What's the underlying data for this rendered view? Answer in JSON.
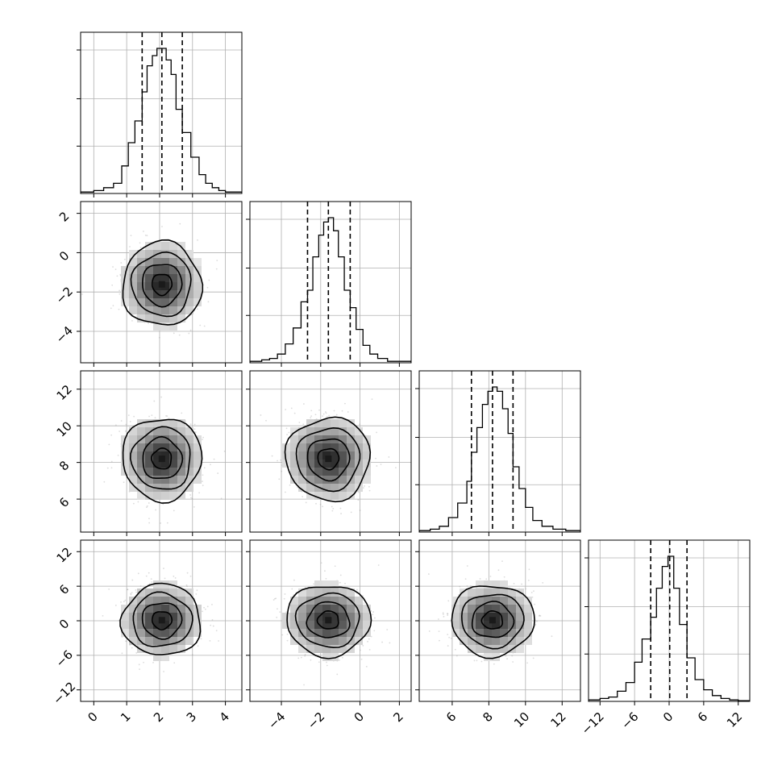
{
  "chart_data": {
    "type": "corner",
    "n_params": 4,
    "param_labels": [
      "",
      "",
      "",
      ""
    ],
    "ranges": [
      [
        -0.4,
        4.5
      ],
      [
        -5.6,
        2.6
      ],
      [
        4.2,
        13.0
      ],
      [
        -14.0,
        14.0
      ]
    ],
    "ticks": [
      [
        0,
        1,
        2,
        3,
        4
      ],
      [
        -4,
        -2,
        0,
        2
      ],
      [
        6,
        8,
        10,
        12
      ],
      [
        -12,
        -6,
        0,
        6,
        12
      ]
    ],
    "tick_labels": [
      [
        "0",
        "1",
        "2",
        "3",
        "4"
      ],
      [
        "−4",
        "−2",
        "0",
        "2"
      ],
      [
        "6",
        "8",
        "10",
        "12"
      ],
      [
        "−12",
        "−6",
        "0",
        "6",
        "12"
      ]
    ],
    "quantiles": [
      [
        1.47,
        2.07,
        2.69
      ],
      [
        -2.67,
        -1.61,
        -0.5
      ],
      [
        7.05,
        8.2,
        9.32
      ],
      [
        -3.2,
        0.1,
        3.1
      ]
    ],
    "grid": true,
    "diagonal_histograms": [
      {
        "param": 0,
        "bins": [
          [
            -0.4,
            0.0
          ],
          [
            0.0,
            0.3
          ],
          [
            0.3,
            0.6
          ],
          [
            0.6,
            0.85
          ],
          [
            0.85,
            1.05
          ],
          [
            1.05,
            1.25
          ],
          [
            1.25,
            1.47
          ],
          [
            1.47,
            1.62
          ],
          [
            1.62,
            1.78
          ],
          [
            1.78,
            1.92
          ],
          [
            1.92,
            2.07
          ],
          [
            2.07,
            2.2
          ],
          [
            2.2,
            2.35
          ],
          [
            2.35,
            2.5
          ],
          [
            2.5,
            2.69
          ],
          [
            2.69,
            2.95
          ],
          [
            2.95,
            3.2
          ],
          [
            3.2,
            3.4
          ],
          [
            3.4,
            3.6
          ],
          [
            3.6,
            3.8
          ],
          [
            3.8,
            4.0
          ],
          [
            4.0,
            4.5
          ]
        ],
        "counts": [
          0.01,
          0.02,
          0.04,
          0.07,
          0.19,
          0.35,
          0.5,
          0.7,
          0.88,
          0.95,
          1.0,
          1.0,
          0.92,
          0.82,
          0.58,
          0.42,
          0.25,
          0.13,
          0.07,
          0.04,
          0.02,
          0.01
        ]
      },
      {
        "param": 1,
        "bins": [
          [
            -5.6,
            -5.0
          ],
          [
            -5.0,
            -4.6
          ],
          [
            -4.6,
            -4.2
          ],
          [
            -4.2,
            -3.8
          ],
          [
            -3.8,
            -3.4
          ],
          [
            -3.4,
            -3.0
          ],
          [
            -3.0,
            -2.67
          ],
          [
            -2.67,
            -2.4
          ],
          [
            -2.4,
            -2.1
          ],
          [
            -2.1,
            -1.85
          ],
          [
            -1.85,
            -1.61
          ],
          [
            -1.61,
            -1.35
          ],
          [
            -1.35,
            -1.1
          ],
          [
            -1.1,
            -0.8
          ],
          [
            -0.8,
            -0.5
          ],
          [
            -0.5,
            -0.2
          ],
          [
            -0.2,
            0.15
          ],
          [
            0.15,
            0.5
          ],
          [
            0.5,
            0.9
          ],
          [
            0.9,
            1.4
          ],
          [
            1.4,
            2.6
          ]
        ],
        "counts": [
          0.01,
          0.02,
          0.03,
          0.06,
          0.13,
          0.24,
          0.42,
          0.5,
          0.73,
          0.88,
          0.97,
          1.0,
          0.91,
          0.73,
          0.5,
          0.38,
          0.23,
          0.12,
          0.06,
          0.03,
          0.01
        ]
      },
      {
        "param": 2,
        "bins": [
          [
            4.2,
            4.8
          ],
          [
            4.8,
            5.3
          ],
          [
            5.3,
            5.8
          ],
          [
            5.8,
            6.3
          ],
          [
            6.3,
            6.8
          ],
          [
            6.8,
            7.05
          ],
          [
            7.05,
            7.35
          ],
          [
            7.35,
            7.65
          ],
          [
            7.65,
            7.95
          ],
          [
            7.95,
            8.2
          ],
          [
            8.2,
            8.45
          ],
          [
            8.45,
            8.75
          ],
          [
            8.75,
            9.05
          ],
          [
            9.05,
            9.32
          ],
          [
            9.32,
            9.65
          ],
          [
            9.65,
            10.0
          ],
          [
            10.0,
            10.4
          ],
          [
            10.4,
            10.9
          ],
          [
            10.9,
            11.5
          ],
          [
            11.5,
            12.2
          ],
          [
            12.2,
            13.0
          ]
        ],
        "counts": [
          0.01,
          0.02,
          0.04,
          0.1,
          0.2,
          0.35,
          0.55,
          0.72,
          0.88,
          0.97,
          1.0,
          0.97,
          0.85,
          0.68,
          0.45,
          0.3,
          0.17,
          0.08,
          0.04,
          0.02,
          0.01
        ]
      },
      {
        "param": 3,
        "bins": [
          [
            -14.0,
            -12.0
          ],
          [
            -12.0,
            -10.5
          ],
          [
            -10.5,
            -9.0
          ],
          [
            -9.0,
            -7.5
          ],
          [
            -7.5,
            -6.0
          ],
          [
            -6.0,
            -4.7
          ],
          [
            -4.7,
            -3.2
          ],
          [
            -3.2,
            -2.2
          ],
          [
            -2.2,
            -1.2
          ],
          [
            -1.2,
            -0.2
          ],
          [
            -0.2,
            0.8
          ],
          [
            0.8,
            1.8
          ],
          [
            1.8,
            3.1
          ],
          [
            3.1,
            4.5
          ],
          [
            4.5,
            6.0
          ],
          [
            6.0,
            7.5
          ],
          [
            7.5,
            9.0
          ],
          [
            9.0,
            10.5
          ],
          [
            10.5,
            12.0
          ],
          [
            12.0,
            14.0
          ]
        ],
        "counts": [
          0.01,
          0.02,
          0.03,
          0.07,
          0.13,
          0.27,
          0.43,
          0.58,
          0.78,
          0.93,
          1.0,
          0.78,
          0.53,
          0.3,
          0.15,
          0.08,
          0.04,
          0.02,
          0.01,
          0.005
        ]
      }
    ],
    "pair_panels": [
      {
        "x_param": 0,
        "y_param": 1,
        "mean": [
          2.07,
          -1.61
        ],
        "sd": [
          0.6,
          1.07
        ],
        "contour_levels": [
          "0.5σ",
          "1σ",
          "1.5σ",
          "2σ"
        ]
      },
      {
        "x_param": 0,
        "y_param": 2,
        "mean": [
          2.07,
          8.2
        ],
        "sd": [
          0.6,
          1.13
        ],
        "contour_levels": [
          "0.5σ",
          "1σ",
          "1.5σ",
          "2σ"
        ]
      },
      {
        "x_param": 1,
        "y_param": 2,
        "mean": [
          -1.61,
          8.2
        ],
        "sd": [
          1.07,
          1.13
        ],
        "contour_levels": [
          "0.5σ",
          "1σ",
          "1.5σ",
          "2σ"
        ]
      },
      {
        "x_param": 0,
        "y_param": 3,
        "mean": [
          2.07,
          0.1
        ],
        "sd": [
          0.6,
          3.1
        ],
        "contour_levels": [
          "0.5σ",
          "1σ",
          "1.5σ",
          "2σ"
        ]
      },
      {
        "x_param": 1,
        "y_param": 3,
        "mean": [
          -1.61,
          0.1
        ],
        "sd": [
          1.07,
          3.1
        ],
        "contour_levels": [
          "0.5σ",
          "1σ",
          "1.5σ",
          "2σ"
        ]
      },
      {
        "x_param": 2,
        "y_param": 3,
        "mean": [
          8.2,
          0.1
        ],
        "sd": [
          1.13,
          3.1
        ],
        "contour_levels": [
          "0.5σ",
          "1σ",
          "1.5σ",
          "2σ"
        ]
      }
    ],
    "colors": {
      "line": "#000000",
      "grid": "#b0b0b0",
      "density_dark": "#1a1a1a",
      "density_light": "#f2f2f2",
      "samples": "#9a9a9a"
    }
  }
}
